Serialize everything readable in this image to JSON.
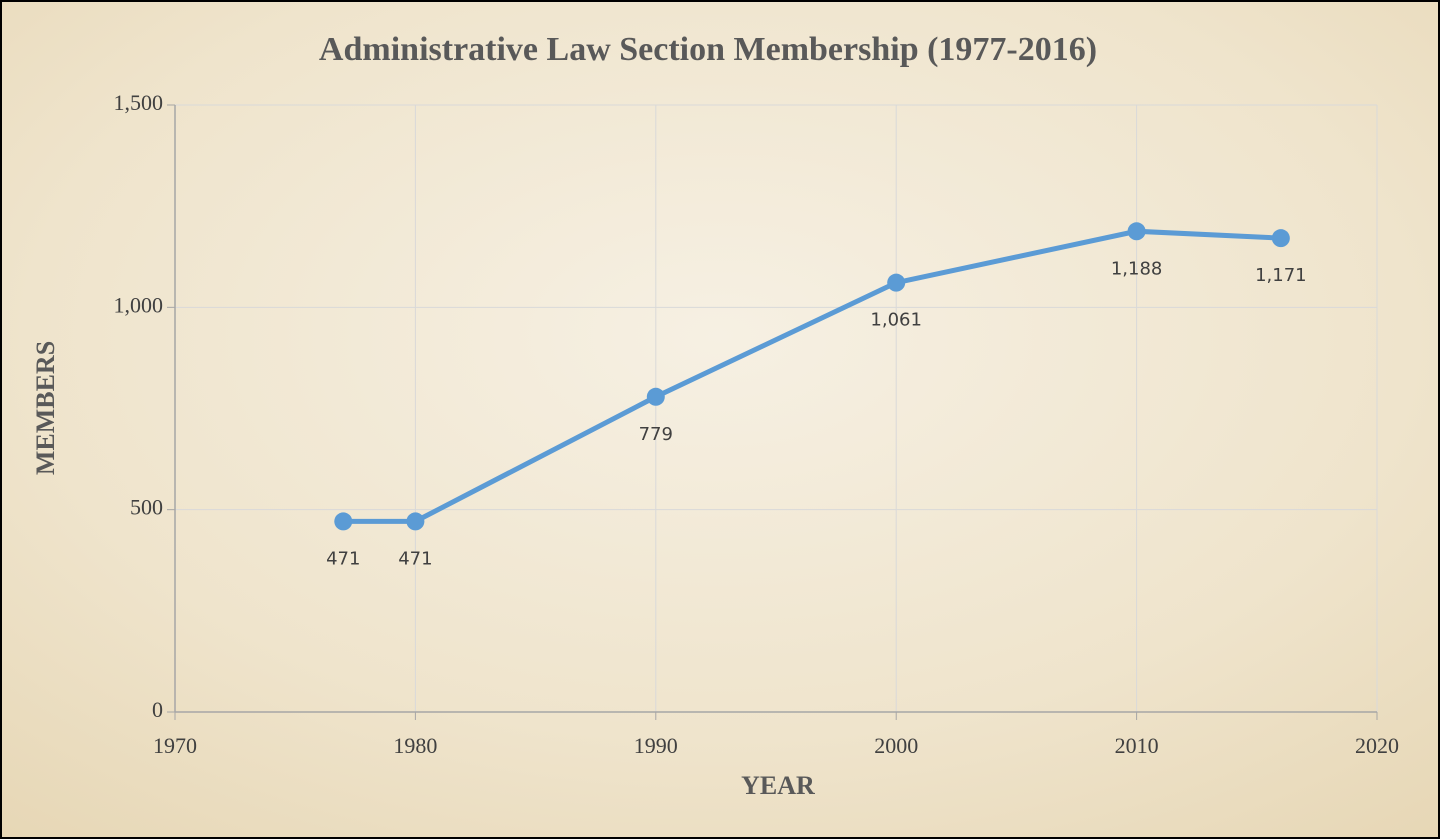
{
  "chart_data": {
    "type": "line",
    "title": "Administrative Law Section Membership (1977-2016)",
    "xlabel": "YEAR",
    "ylabel": "MEMBERS",
    "x": [
      1977,
      1980,
      1990,
      2000,
      2010,
      2016
    ],
    "series": [
      {
        "name": "Members",
        "color": "#5b9bd5",
        "values": [
          471,
          471,
          779,
          1061,
          1188,
          1171
        ],
        "value_labels": [
          "471",
          "471",
          "779",
          "1,061",
          "1,188",
          "1,171"
        ]
      }
    ],
    "xlim": [
      1970,
      2020
    ],
    "xticks": [
      1970,
      1980,
      1990,
      2000,
      2010,
      2020
    ],
    "ylim": [
      0,
      1500
    ],
    "yticks": [
      0,
      500,
      {
        "value": 1000,
        "label": "1,000"
      },
      {
        "value": 1500,
        "label": "1,500"
      }
    ],
    "grid": true
  }
}
